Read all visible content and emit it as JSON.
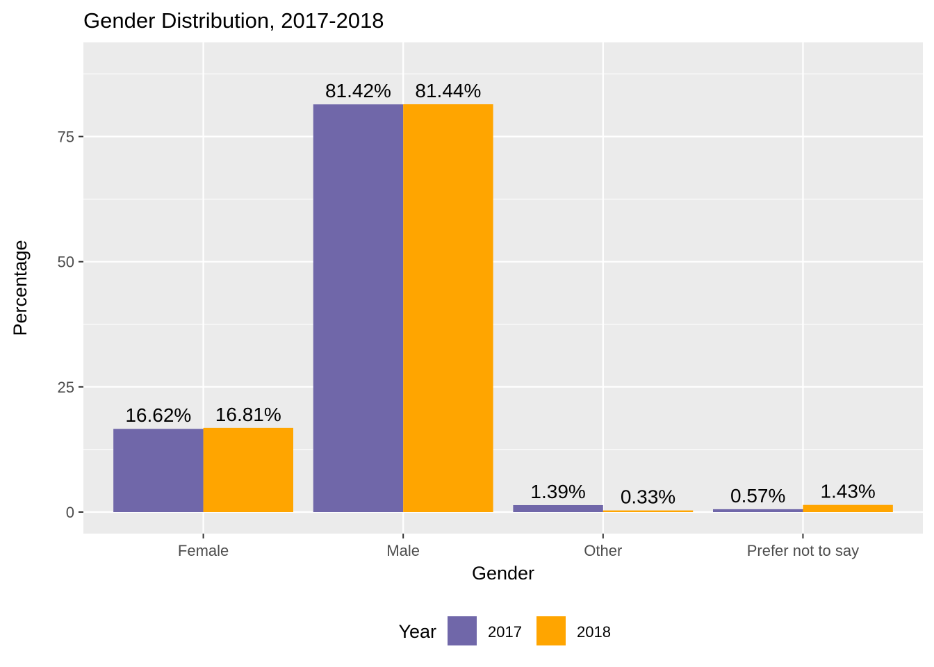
{
  "chart_data": {
    "type": "bar",
    "title": "Gender Distribution, 2017-2018",
    "xlabel": "Gender",
    "ylabel": "Percentage",
    "categories": [
      "Female",
      "Male",
      "Other",
      "Prefer not to say"
    ],
    "series": [
      {
        "name": "2017",
        "color": "#7067A9",
        "values": [
          16.62,
          81.42,
          1.39,
          0.57
        ],
        "labels": [
          "16.62%",
          "81.42%",
          "1.39%",
          "0.57%"
        ]
      },
      {
        "name": "2018",
        "color": "#FFA500",
        "values": [
          16.81,
          81.44,
          0.33,
          1.43
        ],
        "labels": [
          "16.81%",
          "81.44%",
          "0.33%",
          "1.43%"
        ]
      }
    ],
    "yticks": [
      0,
      25,
      50,
      75
    ],
    "ytick_labels": [
      "0",
      "25",
      "50",
      "75"
    ],
    "ylim": [
      -4.3,
      93.8
    ],
    "grid": true,
    "legend": {
      "title": "Year",
      "position": "bottom"
    },
    "colors": {
      "panel_background": "#EBEBEB",
      "grid": "#FFFFFF",
      "tick_text": "#4D4D4D",
      "tick_mark": "#333333"
    }
  }
}
